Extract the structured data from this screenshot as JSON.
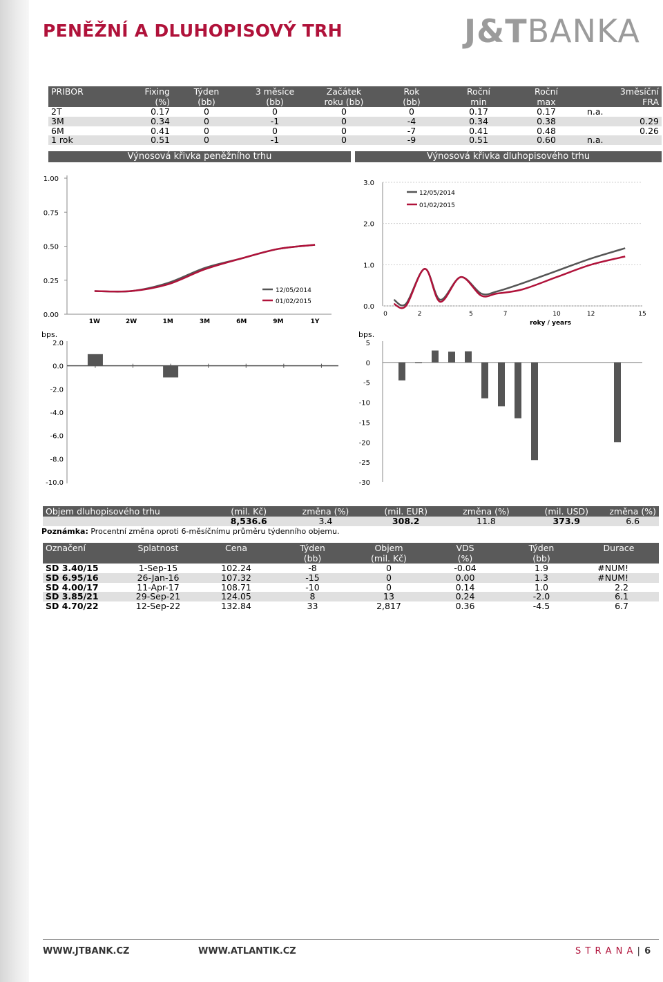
{
  "header": {
    "title": "PENĚŽNÍ A DLUHOPISOVÝ TRH",
    "brand_left": "J&T",
    "brand_right": "BANKA"
  },
  "pribor": {
    "headers": [
      [
        "PRIBOR",
        ""
      ],
      [
        "Fixing",
        "(%)"
      ],
      [
        "Týden",
        "(bb)"
      ],
      [
        "3 měsíce",
        "(bb)"
      ],
      [
        "Začátek",
        "roku (bb)"
      ],
      [
        "Rok",
        "(bb)"
      ],
      [
        "Roční",
        "min"
      ],
      [
        "Roční",
        "max"
      ],
      [
        "3měsíční",
        "FRA"
      ]
    ],
    "rows": [
      [
        "2T",
        "0.17",
        "0",
        "0",
        "0",
        "0",
        "0.17",
        "0.17",
        "n.a."
      ],
      [
        "3M",
        "0.34",
        "0",
        "-1",
        "0",
        "-4",
        "0.34",
        "0.38",
        "0.29"
      ],
      [
        "6M",
        "0.41",
        "0",
        "0",
        "0",
        "-7",
        "0.41",
        "0.48",
        "0.26"
      ],
      [
        "1 rok",
        "0.51",
        "0",
        "-1",
        "0",
        "-9",
        "0.51",
        "0.60",
        "n.a."
      ]
    ]
  },
  "sections": {
    "money_curve": "Výnosová křivka peněžního trhu",
    "bond_curve": "Výnosová křivka dluhopisového trhu"
  },
  "chart_data": [
    {
      "type": "line",
      "categories": [
        "1W",
        "2W",
        "1M",
        "3M",
        "6M",
        "9M",
        "1Y"
      ],
      "yticks": [
        "1.00",
        "0.75",
        "0.50",
        "0.25",
        "0.00"
      ],
      "ylim": [
        0,
        1.0
      ],
      "series": [
        {
          "name": "12/05/2014",
          "color": "#555555",
          "values": [
            0.17,
            0.17,
            0.23,
            0.34,
            0.41,
            0.48,
            0.51
          ]
        },
        {
          "name": "01/02/2015",
          "color": "#b0123a",
          "values": [
            0.17,
            0.17,
            0.22,
            0.33,
            0.41,
            0.48,
            0.51
          ]
        }
      ]
    },
    {
      "type": "bar",
      "ylabel": "bps.",
      "categories": [
        "1W",
        "2W",
        "1M",
        "3M",
        "6M",
        "9M",
        "1Y"
      ],
      "yticks": [
        "2.0",
        "0.0",
        "-2.0",
        "-4.0",
        "-6.0",
        "-8.0",
        "-10.0"
      ],
      "ylim": [
        -10,
        2
      ],
      "values": [
        1,
        0,
        -1,
        0,
        0,
        0,
        0
      ]
    },
    {
      "type": "line",
      "xlabel": "roky / years",
      "xticks": [
        "0",
        "2",
        "5",
        "7",
        "10",
        "12",
        "15"
      ],
      "yticks": [
        "3.0",
        "2.0",
        "1.0",
        "0.0"
      ],
      "xlim": [
        0,
        15
      ],
      "ylim": [
        0,
        3
      ],
      "series": [
        {
          "name": "12/05/2014",
          "color": "#555555",
          "points": [
            [
              0.5,
              0.15
            ],
            [
              1.2,
              0.05
            ],
            [
              2.3,
              0.9
            ],
            [
              3.2,
              0.15
            ],
            [
              4.4,
              0.7
            ],
            [
              5.6,
              0.3
            ],
            [
              6.5,
              0.35
            ],
            [
              8,
              0.55
            ],
            [
              10,
              0.85
            ],
            [
              12,
              1.15
            ],
            [
              14,
              1.4
            ]
          ]
        },
        {
          "name": "01/02/2015",
          "color": "#b0123a",
          "points": [
            [
              0.5,
              0.05
            ],
            [
              1.2,
              0.0
            ],
            [
              2.3,
              0.9
            ],
            [
              3.2,
              0.1
            ],
            [
              4.4,
              0.7
            ],
            [
              5.6,
              0.25
            ],
            [
              6.5,
              0.3
            ],
            [
              8,
              0.4
            ],
            [
              10,
              0.7
            ],
            [
              12,
              1.0
            ],
            [
              14,
              1.2
            ]
          ]
        }
      ]
    },
    {
      "type": "bar",
      "ylabel": "bps.",
      "yticks": [
        "5",
        "0",
        "-5",
        "-10",
        "-15",
        "-20",
        "-25",
        "-30"
      ],
      "ylim": [
        -30,
        5
      ],
      "values": [
        -4.5,
        -0.2,
        3,
        2.7,
        2.8,
        -9,
        -11,
        -14,
        -24.5,
        -20
      ],
      "positions": [
        1,
        2,
        3,
        4,
        5,
        6,
        7,
        8,
        9,
        14
      ]
    }
  ],
  "volume": {
    "headers": [
      "Objem dluhopisového trhu",
      "(mil. Kč)",
      "změna (%)",
      "(mil. EUR)",
      "změna (%)",
      "(mil. USD)",
      "změna (%)"
    ],
    "row": [
      "",
      "8,536.6",
      "3.4",
      "308.2",
      "11.8",
      "373.9",
      "6.6"
    ],
    "note_label": "Poznámka:",
    "note_text": " Procentní změna oproti 6-měsíčnímu průměru týdenního objemu."
  },
  "bonds": {
    "headers": [
      [
        "Označení",
        ""
      ],
      [
        "Splatnost",
        ""
      ],
      [
        "Cena",
        ""
      ],
      [
        "Týden",
        "(bb)"
      ],
      [
        "Objem",
        "(mil. Kč)"
      ],
      [
        "VDS",
        "(%)"
      ],
      [
        "Týden",
        "(bb)"
      ],
      [
        "Durace",
        ""
      ]
    ],
    "rows": [
      [
        "SD 3.40/15",
        "1-Sep-15",
        "102.24",
        "-8",
        "0",
        "-0.04",
        "1.9",
        "#NUM!"
      ],
      [
        "SD 6.95/16",
        "26-Jan-16",
        "107.32",
        "-15",
        "0",
        "0.00",
        "1.3",
        "#NUM!"
      ],
      [
        "SD 4.00/17",
        "11-Apr-17",
        "108.71",
        "-10",
        "0",
        "0.14",
        "1.0",
        "2.2"
      ],
      [
        "SD 3.85/21",
        "29-Sep-21",
        "124.05",
        "8",
        "13",
        "0.24",
        "-2.0",
        "6.1"
      ],
      [
        "SD 4.70/22",
        "12-Sep-22",
        "132.84",
        "33",
        "2,817",
        "0.36",
        "-4.5",
        "6.7"
      ]
    ]
  },
  "footer": {
    "link1": "WWW.JTBANK.CZ",
    "link2": "WWW.ATLANTIK.CZ",
    "page_label": "S T R A N A",
    "page_sep": "|",
    "page_number": "6"
  }
}
